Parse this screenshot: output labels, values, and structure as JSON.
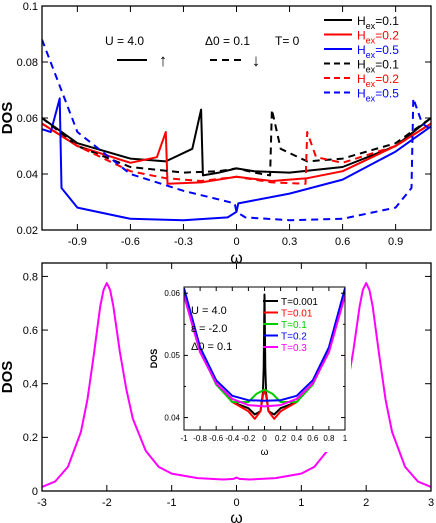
{
  "chart_data": [
    {
      "type": "line",
      "xlabel": "ω",
      "ylabel": "DOS",
      "xlim": [
        -1.1,
        1.1
      ],
      "ylim": [
        0.02,
        0.1
      ],
      "xticks": [
        -0.9,
        -0.6,
        -0.3,
        0,
        0.3,
        0.6,
        0.9
      ],
      "xtick_labels": [
        "-0.9",
        "-0.6",
        "-0.3",
        "0",
        "0.3",
        "0.6",
        "0.9"
      ],
      "yticks": [
        0.02,
        0.04,
        0.06,
        0.08,
        0.1
      ],
      "ytick_labels": [
        "0.02",
        "0.04",
        "0.06",
        "0.08",
        "0.1"
      ],
      "annotations": {
        "u": "U = 4.0",
        "delta": "Δ0 = 0.1",
        "t": "T= 0",
        "up_arrow": "↑",
        "down_arrow": "↓"
      },
      "legend_placement": "top-right",
      "series": [
        {
          "name": "Hex=0.1",
          "legend_main": "H",
          "legend_sub": "ex",
          "legend_tail": "=0.1",
          "h": 0.1,
          "spin": "up",
          "color": "#000000",
          "dash": "solid",
          "x": [
            -1.1,
            -0.9,
            -0.6,
            -0.4,
            -0.25,
            -0.2,
            -0.19,
            -0.1,
            0,
            0.1,
            0.3,
            0.6,
            0.9,
            1.1
          ],
          "values": [
            0.06,
            0.051,
            0.0455,
            0.0445,
            0.049,
            0.063,
            0.0395,
            0.0405,
            0.042,
            0.041,
            0.0405,
            0.0425,
            0.05,
            0.06
          ]
        },
        {
          "name": "Hex=0.2",
          "legend_main": "H",
          "legend_sub": "ex",
          "legend_tail": "=0.2",
          "h": 0.2,
          "spin": "up",
          "color": "#ff0000",
          "dash": "solid",
          "x": [
            -1.1,
            -0.9,
            -0.6,
            -0.45,
            -0.4,
            -0.39,
            -0.2,
            0,
            0.2,
            0.4,
            0.6,
            0.9,
            1.1
          ],
          "values": [
            0.058,
            0.05,
            0.044,
            0.046,
            0.055,
            0.0365,
            0.037,
            0.039,
            0.0375,
            0.0385,
            0.041,
            0.05,
            0.058
          ]
        },
        {
          "name": "Hex=0.5",
          "legend_main": "H",
          "legend_sub": "ex",
          "legend_tail": "=0.5",
          "h": 0.5,
          "spin": "up",
          "color": "#0000ff",
          "dash": "solid",
          "x": [
            -1.1,
            -1.05,
            -1.0,
            -0.99,
            -0.9,
            -0.6,
            -0.3,
            -0.05,
            0,
            0.01,
            0.3,
            0.6,
            0.9,
            1.1
          ],
          "values": [
            0.056,
            0.055,
            0.067,
            0.035,
            0.028,
            0.024,
            0.0235,
            0.0245,
            0.0265,
            0.0295,
            0.033,
            0.038,
            0.048,
            0.057
          ]
        },
        {
          "name": "Hex=0.1",
          "legend_main": "H",
          "legend_sub": "ex",
          "legend_tail": "=0.1",
          "h": 0.1,
          "spin": "down",
          "color": "#000000",
          "dash": "dashed",
          "x": [
            -1.1,
            -0.9,
            -0.6,
            -0.3,
            -0.1,
            0,
            0.1,
            0.19,
            0.2,
            0.25,
            0.4,
            0.6,
            0.9,
            1.1
          ],
          "values": [
            0.06,
            0.05,
            0.0425,
            0.0405,
            0.041,
            0.042,
            0.0405,
            0.0395,
            0.063,
            0.049,
            0.0445,
            0.0455,
            0.051,
            0.06
          ]
        },
        {
          "name": "Hex=0.2",
          "legend_main": "H",
          "legend_sub": "ex",
          "legend_tail": "=0.2",
          "h": 0.2,
          "spin": "down",
          "color": "#ff0000",
          "dash": "dashed",
          "x": [
            -1.1,
            -0.9,
            -0.6,
            -0.4,
            -0.2,
            0,
            0.2,
            0.39,
            0.4,
            0.45,
            0.6,
            0.9,
            1.1
          ],
          "values": [
            0.058,
            0.05,
            0.041,
            0.0385,
            0.0375,
            0.039,
            0.037,
            0.0365,
            0.055,
            0.046,
            0.044,
            0.05,
            0.058
          ]
        },
        {
          "name": "Hex=0.5",
          "legend_main": "H",
          "legend_sub": "ex",
          "legend_tail": "=0.5",
          "h": 0.5,
          "spin": "down",
          "color": "#0000ff",
          "dash": "dashed",
          "x": [
            -1.1,
            -0.9,
            -0.6,
            -0.3,
            -0.01,
            0,
            0.05,
            0.3,
            0.6,
            0.9,
            0.99,
            1.0,
            1.05,
            1.1
          ],
          "values": [
            0.088,
            0.055,
            0.04,
            0.034,
            0.0295,
            0.0265,
            0.0245,
            0.0235,
            0.024,
            0.028,
            0.035,
            0.067,
            0.058,
            0.056
          ]
        }
      ]
    },
    {
      "type": "line",
      "xlabel": "ω",
      "ylabel": "DOS",
      "xlim": [
        -3,
        3
      ],
      "ylim": [
        0,
        0.85
      ],
      "xticks": [
        -3,
        -2,
        -1,
        0,
        1,
        2,
        3
      ],
      "xtick_labels": [
        "-3",
        "-2",
        "-1",
        "0",
        "1",
        "2",
        "3"
      ],
      "yticks": [
        0,
        0.2,
        0.4,
        0.6,
        0.8
      ],
      "ytick_labels": [
        "0",
        "0.2",
        "0.4",
        "0.6",
        "0.8"
      ],
      "series": [
        {
          "name": "T=0.3",
          "color": "#ff00ff",
          "x": [
            -3,
            -2.8,
            -2.6,
            -2.4,
            -2.3,
            -2.2,
            -2.1,
            -2.05,
            -2.0,
            -1.95,
            -1.9,
            -1.8,
            -1.7,
            -1.6,
            -1.4,
            -1.2,
            -1.0,
            -0.6,
            -0.2,
            -0.05,
            0,
            0.05,
            0.2,
            0.6,
            1.0,
            1.2,
            1.4,
            1.6,
            1.7,
            1.8,
            1.9,
            1.95,
            2.0,
            2.05,
            2.1,
            2.2,
            2.3,
            2.4,
            2.6,
            2.8,
            3
          ],
          "values": [
            0.015,
            0.035,
            0.09,
            0.22,
            0.34,
            0.51,
            0.69,
            0.75,
            0.775,
            0.75,
            0.69,
            0.52,
            0.38,
            0.27,
            0.15,
            0.09,
            0.065,
            0.048,
            0.043,
            0.045,
            0.05,
            0.045,
            0.043,
            0.048,
            0.065,
            0.09,
            0.15,
            0.27,
            0.38,
            0.52,
            0.69,
            0.75,
            0.775,
            0.75,
            0.69,
            0.51,
            0.34,
            0.22,
            0.09,
            0.035,
            0.015
          ]
        }
      ]
    },
    {
      "type": "line",
      "inset": true,
      "xlabel": "ω",
      "ylabel": "DOS",
      "xlim": [
        -1,
        1
      ],
      "ylim": [
        0.038,
        0.061
      ],
      "xticks": [
        -1,
        -0.8,
        -0.6,
        -0.4,
        -0.2,
        0,
        0.2,
        0.4,
        0.6,
        0.8,
        1
      ],
      "xtick_labels": [
        "-1",
        "-0.8",
        "-0.6",
        "-0.4",
        "-0.2",
        "0",
        "0.2",
        "0.4",
        "0.6",
        "0.8",
        "1"
      ],
      "yticks": [
        0.04,
        0.05,
        0.06
      ],
      "ytick_labels": [
        "0.04",
        "0.05",
        "0.06"
      ],
      "annotations": {
        "u": "U = 4.0",
        "eps": "ε = -2.0",
        "delta": "Δ0 = 0.1"
      },
      "legend_placement": "top-right",
      "series": [
        {
          "name": "T=0.001",
          "color": "#000000",
          "x": [
            -1,
            -0.8,
            -0.6,
            -0.4,
            -0.2,
            -0.12,
            -0.05,
            -0.02,
            -0.01,
            0,
            0.01,
            0.02,
            0.05,
            0.12,
            0.2,
            0.4,
            0.6,
            0.8,
            1
          ],
          "values": [
            0.0605,
            0.051,
            0.0455,
            0.0425,
            0.0415,
            0.0405,
            0.041,
            0.044,
            0.048,
            0.0598,
            0.048,
            0.044,
            0.041,
            0.0405,
            0.0415,
            0.0425,
            0.0455,
            0.051,
            0.0605
          ]
        },
        {
          "name": "T=0.01",
          "color": "#ff0000",
          "x": [
            -1,
            -0.8,
            -0.6,
            -0.4,
            -0.2,
            -0.12,
            -0.05,
            -0.02,
            0,
            0.02,
            0.05,
            0.12,
            0.2,
            0.4,
            0.6,
            0.8,
            1
          ],
          "values": [
            0.0605,
            0.051,
            0.0455,
            0.0425,
            0.041,
            0.0398,
            0.041,
            0.0435,
            0.0445,
            0.0435,
            0.041,
            0.0398,
            0.041,
            0.0425,
            0.0455,
            0.051,
            0.0605
          ]
        },
        {
          "name": "T=0.1",
          "color": "#00cc00",
          "x": [
            -1,
            -0.8,
            -0.6,
            -0.4,
            -0.2,
            -0.1,
            0,
            0.1,
            0.2,
            0.4,
            0.6,
            0.8,
            1
          ],
          "values": [
            0.0603,
            0.0508,
            0.0453,
            0.0425,
            0.0425,
            0.0438,
            0.0445,
            0.0438,
            0.0425,
            0.0425,
            0.0453,
            0.0508,
            0.0603
          ]
        },
        {
          "name": "T=0.2",
          "color": "#0000ff",
          "x": [
            -1,
            -0.8,
            -0.6,
            -0.4,
            -0.2,
            0,
            0.2,
            0.4,
            0.6,
            0.8,
            1
          ],
          "values": [
            0.0608,
            0.0513,
            0.046,
            0.0435,
            0.0428,
            0.0427,
            0.0428,
            0.0435,
            0.046,
            0.0513,
            0.0608
          ]
        },
        {
          "name": "T=0.3",
          "color": "#ff00ff",
          "x": [
            -1,
            -0.8,
            -0.6,
            -0.4,
            -0.2,
            0,
            0.2,
            0.4,
            0.6,
            0.8,
            1
          ],
          "values": [
            0.0596,
            0.0505,
            0.0455,
            0.043,
            0.042,
            0.0418,
            0.042,
            0.043,
            0.0455,
            0.0505,
            0.0596
          ]
        }
      ]
    }
  ]
}
